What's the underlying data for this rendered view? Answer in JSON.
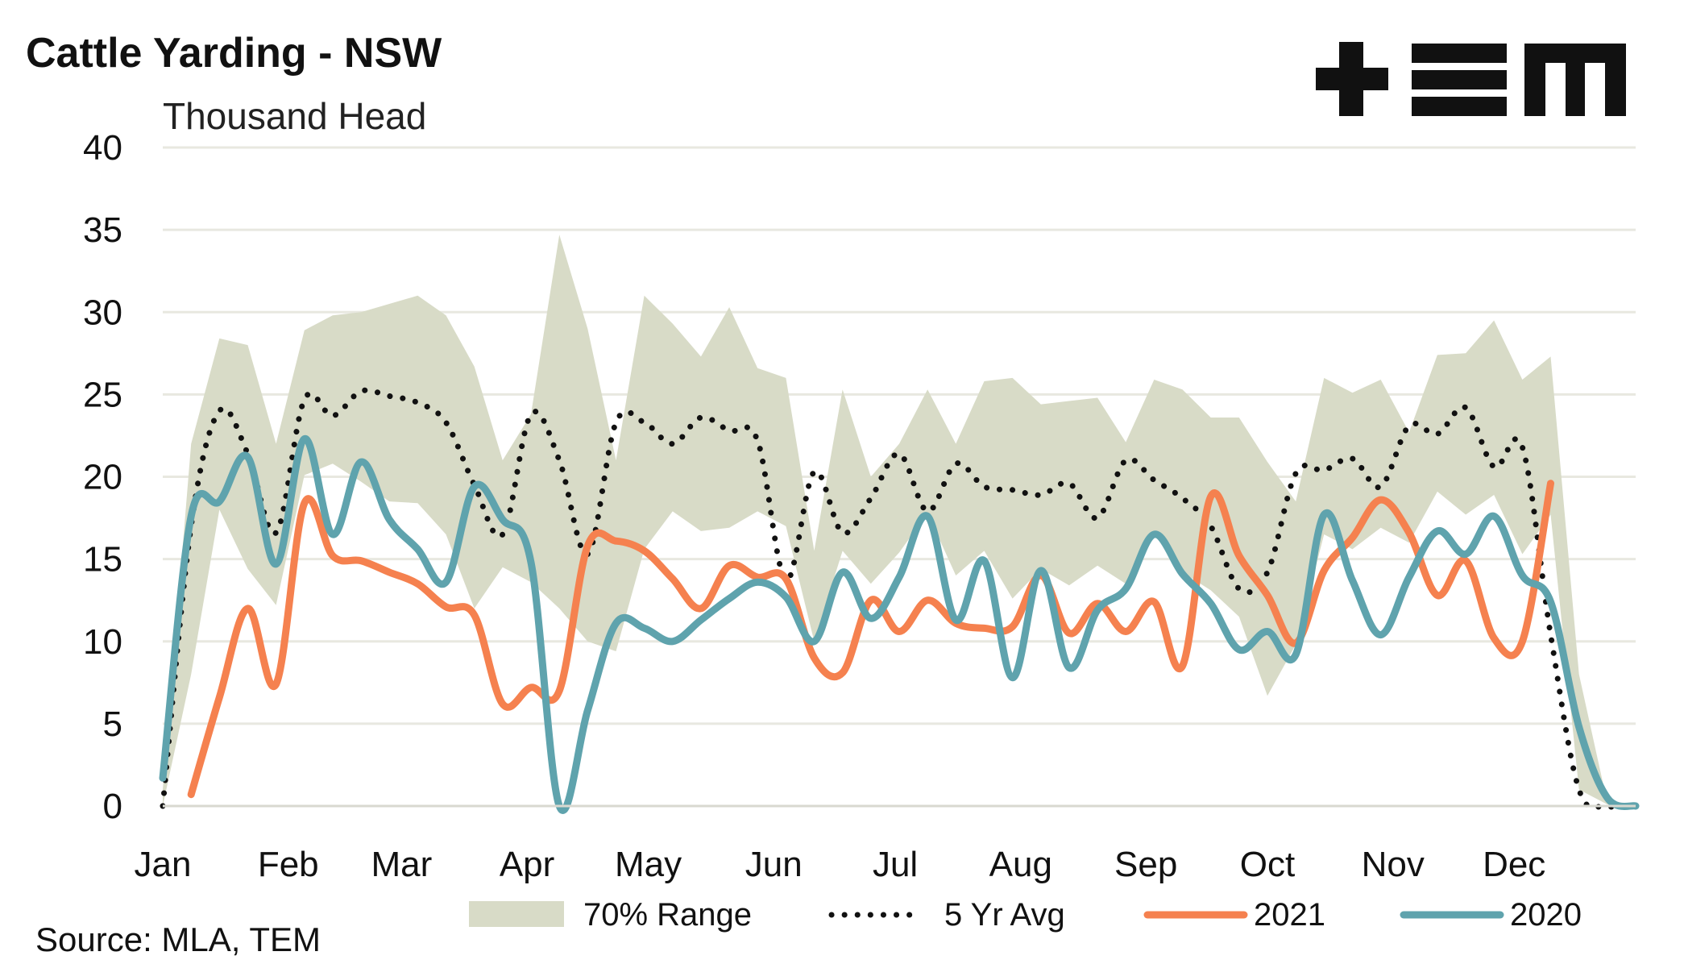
{
  "chart_data": {
    "type": "line",
    "title": "Cattle Yarding - NSW",
    "ylabel": "Thousand Head",
    "source": "Source: MLA, TEM",
    "logo": "TEM",
    "ylim": [
      0,
      40
    ],
    "yticks": [
      0,
      5,
      10,
      15,
      20,
      25,
      30,
      35,
      40
    ],
    "xlim": [
      1,
      53
    ],
    "month_labels": [
      "Jan",
      "Feb",
      "Mar",
      "Apr",
      "May",
      "Jun",
      "Jul",
      "Aug",
      "Sep",
      "Oct",
      "Nov",
      "Dec"
    ],
    "month_weeks": [
      1,
      5.43,
      9.43,
      13.86,
      18.14,
      22.57,
      26.86,
      31.29,
      35.71,
      40,
      44.43,
      48.71
    ],
    "grid": true,
    "legend_position": "bottom",
    "colors": {
      "range": "#d8dbc7",
      "avg": "#111111",
      "y2021": "#f5814f",
      "y2020": "#5fa3ad",
      "grid": "#e8e8e0",
      "logo": "#111111"
    },
    "series": [
      {
        "name": "70% Range",
        "kind": "range",
        "x": [
          1,
          2,
          3,
          4,
          5,
          6,
          7,
          8,
          9,
          10,
          11,
          12,
          13,
          14,
          15,
          16,
          17,
          18,
          19,
          20,
          21,
          22,
          23,
          24,
          25,
          26,
          27,
          28,
          29,
          30,
          31,
          32,
          33,
          34,
          35,
          36,
          37,
          38,
          39,
          40,
          41,
          42,
          43,
          44,
          45,
          46,
          47,
          48,
          49,
          50,
          51,
          52,
          53
        ],
        "upper": [
          1,
          22,
          28.4,
          28,
          22,
          28.9,
          29.8,
          30,
          30.5,
          31,
          29.8,
          26.7,
          21,
          23.8,
          34.7,
          29,
          21,
          31,
          29.3,
          27.3,
          30.3,
          26.6,
          26,
          15.5,
          25.3,
          20,
          22,
          25.3,
          22,
          25.8,
          26,
          24.4,
          24.6,
          24.8,
          22.1,
          25.9,
          25.3,
          23.6,
          23.6,
          20.9,
          18.5,
          26,
          25.1,
          25.9,
          22.7,
          27.4,
          27.5,
          29.5,
          25.9,
          27.3,
          8,
          0.2,
          0
        ],
        "lower": [
          0,
          8,
          18,
          14.4,
          12.2,
          20.1,
          20.8,
          19.7,
          18.5,
          18.4,
          16.5,
          12,
          14.5,
          13.6,
          12,
          10,
          9.4,
          15.6,
          17.9,
          16.7,
          16.9,
          17.9,
          17,
          10,
          15.5,
          13.5,
          15.4,
          17.8,
          14,
          15.5,
          12.6,
          14.4,
          13.4,
          14.6,
          13.5,
          16.5,
          14.2,
          13.1,
          11.5,
          6.7,
          9.8,
          16.5,
          15.6,
          16.9,
          16,
          19.1,
          17.7,
          18.9,
          15.3,
          17.7,
          1,
          0.1,
          0
        ]
      },
      {
        "name": "5 Yr Avg",
        "kind": "dotted",
        "x": [
          1,
          2,
          3,
          4,
          5,
          6,
          7,
          8,
          9,
          10,
          11,
          12,
          13,
          14,
          15,
          16,
          17,
          18,
          19,
          20,
          21,
          22,
          23,
          24,
          25,
          26,
          27,
          28,
          29,
          30,
          31,
          32,
          33,
          34,
          35,
          36,
          37,
          38,
          39,
          40,
          41,
          42,
          43,
          44,
          45,
          46,
          47,
          48,
          49,
          50,
          51,
          52,
          53
        ],
        "values": [
          0,
          17,
          24,
          21.4,
          16.6,
          24.7,
          23.7,
          25.2,
          24.9,
          24.5,
          23.3,
          19.5,
          16.5,
          23.8,
          21,
          15.3,
          23.3,
          23.3,
          22,
          23.6,
          22.8,
          22.2,
          13.7,
          20.3,
          16.6,
          18.7,
          21.4,
          17.9,
          20.8,
          19.4,
          19.2,
          18.9,
          19.6,
          17.5,
          21,
          19.8,
          18.7,
          17,
          13.2,
          14.2,
          20.2,
          20.4,
          21.1,
          19.4,
          23.1,
          22.6,
          24.2,
          20.6,
          21.8,
          10.4,
          1,
          0,
          0
        ]
      },
      {
        "name": "2021",
        "kind": "solid",
        "x": [
          2,
          3,
          4,
          5,
          6,
          7,
          8,
          9,
          10,
          11,
          12,
          13,
          14,
          15,
          16,
          17,
          18,
          19,
          20,
          21,
          22,
          23,
          24,
          25,
          26,
          27,
          28,
          29,
          30,
          31,
          32,
          33,
          34,
          35,
          36,
          37,
          38,
          39,
          40,
          41,
          42,
          43,
          44,
          45,
          46,
          47,
          48,
          49,
          50
        ],
        "values": [
          0.7,
          6.6,
          12,
          7.4,
          18.4,
          15.2,
          14.9,
          14.2,
          13.5,
          12.1,
          11.6,
          6.2,
          7.2,
          7,
          15.8,
          16.1,
          15.5,
          13.8,
          12,
          14.6,
          13.9,
          13.8,
          9,
          8.1,
          12.5,
          10.6,
          12.5,
          11.1,
          10.8,
          10.9,
          14,
          10.5,
          12.3,
          10.6,
          12.4,
          8.5,
          18.8,
          15.2,
          12.8,
          9.9,
          14.3,
          16.3,
          18.6,
          16.6,
          12.8,
          14.9,
          10.2,
          10,
          19.6
        ]
      },
      {
        "name": "2020",
        "kind": "solid",
        "x": [
          1,
          2,
          3,
          4,
          5,
          6,
          7,
          8,
          9,
          10,
          11,
          12,
          13,
          14,
          15,
          16,
          17,
          18,
          19,
          20,
          21,
          22,
          23,
          24,
          25,
          26,
          27,
          28,
          29,
          30,
          31,
          32,
          33,
          34,
          35,
          36,
          37,
          38,
          39,
          40,
          41,
          42,
          43,
          44,
          45,
          46,
          47,
          48,
          49,
          50,
          51,
          52,
          53
        ],
        "values": [
          1.7,
          17.6,
          18.5,
          21.2,
          14.7,
          22.3,
          16.5,
          20.9,
          17.4,
          15.6,
          13.6,
          19.4,
          17.4,
          14.8,
          0,
          5.8,
          11.1,
          10.8,
          10,
          11.3,
          12.6,
          13.6,
          12.7,
          10,
          14.2,
          11.4,
          13.9,
          17.6,
          11.3,
          14.9,
          7.8,
          14.3,
          8.4,
          11.9,
          13.2,
          16.5,
          14.1,
          12.3,
          9.5,
          10.6,
          9.2,
          17.7,
          13.7,
          10.4,
          13.9,
          16.7,
          15.3,
          17.6,
          14,
          12.4,
          4.8,
          0.5,
          0
        ]
      }
    ]
  }
}
